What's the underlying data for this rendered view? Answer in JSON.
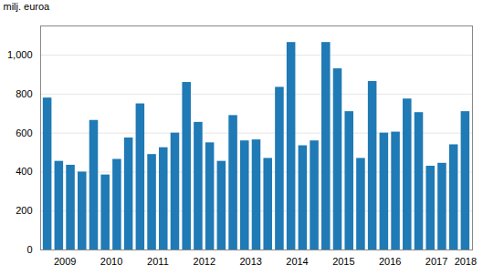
{
  "chart_data": {
    "type": "bar",
    "categories": [
      "2009",
      null,
      null,
      null,
      "2010",
      null,
      null,
      null,
      "2011",
      null,
      null,
      null,
      "2012",
      null,
      null,
      null,
      "2013",
      null,
      null,
      null,
      "2014",
      null,
      null,
      null,
      "2015",
      null,
      null,
      null,
      "2016",
      null,
      null,
      null,
      "2017",
      null,
      null,
      null,
      "2018"
    ],
    "values": [
      780,
      455,
      435,
      400,
      665,
      385,
      465,
      575,
      750,
      490,
      525,
      600,
      860,
      655,
      550,
      455,
      690,
      560,
      565,
      470,
      835,
      1065,
      535,
      560,
      1065,
      930,
      710,
      470,
      865,
      600,
      605,
      775,
      705,
      430,
      445,
      540,
      710
    ],
    "color": "#1f7ab5",
    "ylabel": "milj. euroa",
    "ylim": [
      0,
      1150
    ],
    "yticks": [
      0,
      200,
      400,
      600,
      800,
      1000
    ],
    "grid": true
  }
}
